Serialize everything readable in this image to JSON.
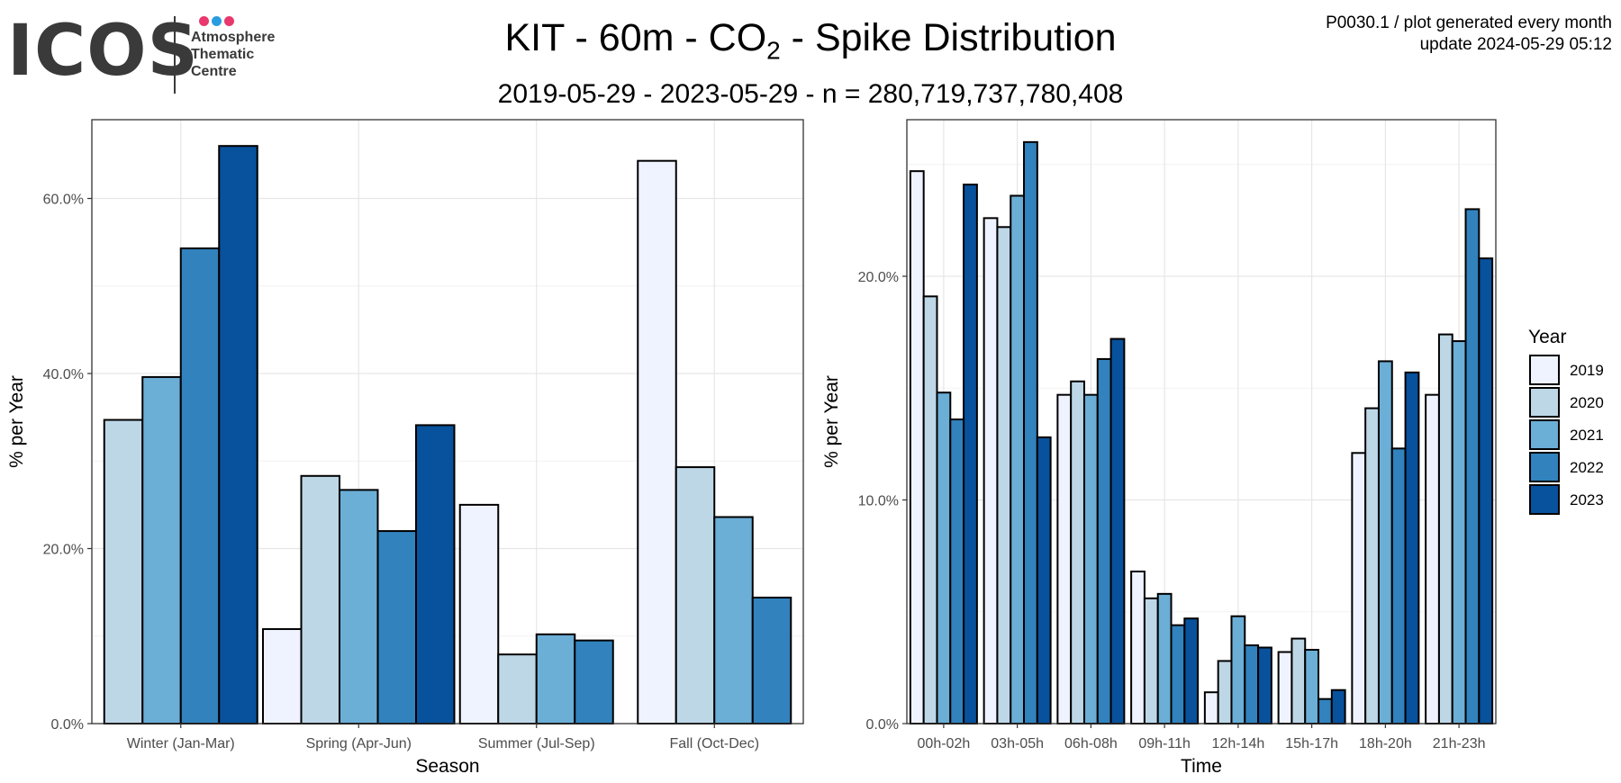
{
  "header": {
    "title_main": "KIT - 60m - CO",
    "title_sub": "2",
    "title_rest": " - Spike Distribution",
    "subtitle": "2019-05-29  -  2023-05-29  - n =  280,719,737,780,408",
    "meta_line1": "P0030.1 / plot generated every month",
    "meta_line2": "update  2024-05-29 05:12"
  },
  "logo": {
    "text": "ICOS",
    "lines": [
      "Atmosphere",
      "Thematic",
      "Centre"
    ],
    "dot_colors": [
      "#e8386d",
      "#2a9de0",
      "#e8386d"
    ]
  },
  "legend": {
    "title": "Year",
    "items": [
      {
        "label": "2019",
        "color": "#eff3ff"
      },
      {
        "label": "2020",
        "color": "#bdd7e7"
      },
      {
        "label": "2021",
        "color": "#6baed6"
      },
      {
        "label": "2022",
        "color": "#3182bd"
      },
      {
        "label": "2023",
        "color": "#08519c"
      }
    ]
  },
  "chart_data": [
    {
      "type": "bar",
      "xlabel": "Season",
      "ylabel": "% per Year",
      "categories": [
        "Winter (Jan-Mar)",
        "Spring (Apr-Jun)",
        "Summer (Jul-Sep)",
        "Fall (Oct-Dec)"
      ],
      "ylim": [
        0,
        69
      ],
      "yticks": [
        0,
        20,
        40,
        60
      ],
      "ytick_labels": [
        "0.0%",
        "20.0%",
        "40.0%",
        "60.0%"
      ],
      "grid": true,
      "series": [
        {
          "name": "2019",
          "values": [
            null,
            10.8,
            25.0,
            64.3
          ]
        },
        {
          "name": "2020",
          "values": [
            34.7,
            28.3,
            7.9,
            29.3
          ]
        },
        {
          "name": "2021",
          "values": [
            39.6,
            26.7,
            10.2,
            23.6
          ]
        },
        {
          "name": "2022",
          "values": [
            54.3,
            22.0,
            9.5,
            14.4
          ]
        },
        {
          "name": "2023",
          "values": [
            66.0,
            34.1,
            null,
            null
          ]
        }
      ]
    },
    {
      "type": "bar",
      "xlabel": "Time",
      "ylabel": "% per Year",
      "categories": [
        "00h-02h",
        "03h-05h",
        "06h-08h",
        "09h-11h",
        "12h-14h",
        "15h-17h",
        "18h-20h",
        "21h-23h"
      ],
      "ylim": [
        0,
        27
      ],
      "yticks": [
        0,
        10,
        20
      ],
      "ytick_labels": [
        "0.0%",
        "10.0%",
        "20.0%"
      ],
      "grid": true,
      "series": [
        {
          "name": "2019",
          "values": [
            24.7,
            22.6,
            14.7,
            6.8,
            1.4,
            3.2,
            12.1,
            14.7
          ]
        },
        {
          "name": "2020",
          "values": [
            19.1,
            22.2,
            15.3,
            5.6,
            2.8,
            3.8,
            14.1,
            17.4
          ]
        },
        {
          "name": "2021",
          "values": [
            14.8,
            23.6,
            14.7,
            5.8,
            4.8,
            3.3,
            16.2,
            17.1
          ]
        },
        {
          "name": "2022",
          "values": [
            13.6,
            26.0,
            16.3,
            4.4,
            3.5,
            1.1,
            12.3,
            23.0
          ]
        },
        {
          "name": "2023",
          "values": [
            24.1,
            12.8,
            17.2,
            4.7,
            3.4,
            1.5,
            15.7,
            20.8
          ]
        }
      ]
    }
  ]
}
